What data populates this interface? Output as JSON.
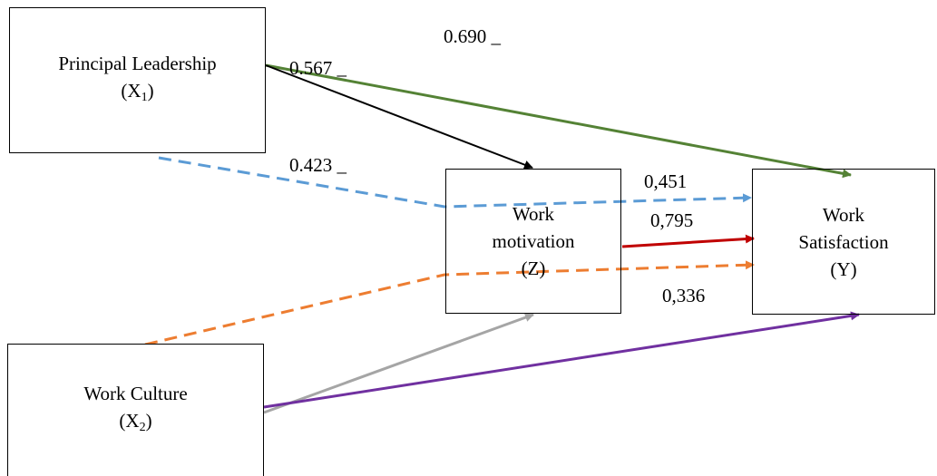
{
  "nodes": {
    "x1": {
      "label": "Principal Leadership",
      "symbol": "(X",
      "subscript": "1",
      "close": ")"
    },
    "x2": {
      "label": "Work Culture",
      "symbol": "(X",
      "subscript": "2",
      "close": ")"
    },
    "z": {
      "line1": "Work",
      "line2": "motivation",
      "line3": "(Z)"
    },
    "y": {
      "line1": "Work",
      "line2": "Satisfaction",
      "line3": "(Y)"
    }
  },
  "coefficients": {
    "x1_y": "0.690 _",
    "x1_z": "0.567 _",
    "x1_y_via_z": "0.423 _",
    "z_y_1": "0,451",
    "z_y_2": "0,795",
    "x2_y_via_z": "0,336"
  },
  "arrows": [
    {
      "from": "Principal Leadership",
      "to": "Work Satisfaction",
      "style": "solid",
      "color": "#548235"
    },
    {
      "from": "Principal Leadership",
      "to": "Work motivation",
      "style": "solid",
      "color": "#000000"
    },
    {
      "from": "Principal Leadership",
      "to": "Work Satisfaction",
      "style": "dashed",
      "color": "#5B9BD5"
    },
    {
      "from": "Work motivation",
      "to": "Work Satisfaction",
      "style": "solid",
      "color": "#C00000"
    },
    {
      "from": "Work Culture",
      "to": "Work Satisfaction",
      "style": "dashed",
      "color": "#ED7D31"
    },
    {
      "from": "Work Culture",
      "to": "Work motivation",
      "style": "solid",
      "color": "#A5A5A5"
    },
    {
      "from": "Work Culture",
      "to": "Work Satisfaction",
      "style": "solid",
      "color": "#7030A0"
    }
  ]
}
